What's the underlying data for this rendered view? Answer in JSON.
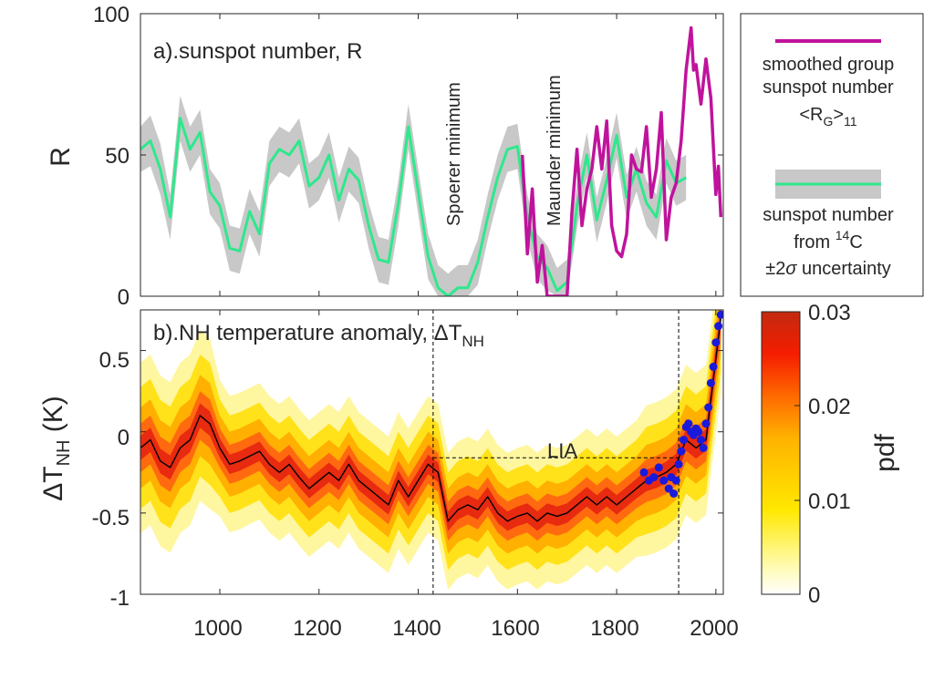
{
  "chart_data": [
    {
      "type": "line",
      "panel": "a",
      "title": "a).sunspot number, R",
      "xlabel": "",
      "ylabel": "R",
      "xlim": [
        840,
        2015
      ],
      "ylim": [
        0,
        100
      ],
      "yticks": [
        "0",
        "50",
        "100"
      ],
      "grid": false,
      "annotations": [
        "Spoerer minimum",
        "Maunder minimum"
      ],
      "series": [
        {
          "name": "sunspot number from 14C ±2σ uncertainty",
          "color": "#2ee88c",
          "band_color": "#c8c8c8",
          "x": [
            840,
            860,
            880,
            900,
            920,
            940,
            960,
            980,
            1000,
            1020,
            1040,
            1060,
            1080,
            1100,
            1120,
            1140,
            1160,
            1180,
            1200,
            1220,
            1240,
            1260,
            1280,
            1300,
            1320,
            1340,
            1360,
            1380,
            1400,
            1420,
            1440,
            1460,
            1480,
            1500,
            1520,
            1540,
            1560,
            1580,
            1600,
            1620,
            1640,
            1660,
            1680,
            1700,
            1720,
            1740,
            1760,
            1780,
            1800,
            1820,
            1840,
            1860,
            1880,
            1900,
            1920,
            1940
          ],
          "y": [
            52,
            55,
            45,
            28,
            63,
            52,
            58,
            37,
            32,
            17,
            16,
            30,
            22,
            47,
            52,
            50,
            55,
            39,
            42,
            50,
            34,
            45,
            41,
            25,
            13,
            12,
            33,
            60,
            37,
            14,
            3,
            0,
            3,
            3,
            12,
            28,
            42,
            52,
            53,
            28,
            14,
            10,
            2,
            5,
            32,
            50,
            27,
            41,
            57,
            35,
            45,
            33,
            28,
            48,
            40,
            42
          ],
          "lower": [
            44,
            46,
            36,
            20,
            55,
            44,
            50,
            29,
            24,
            9,
            8,
            22,
            14,
            39,
            44,
            42,
            47,
            31,
            34,
            42,
            26,
            37,
            33,
            17,
            5,
            4,
            25,
            52,
            29,
            6,
            0,
            0,
            0,
            0,
            4,
            20,
            34,
            44,
            45,
            20,
            6,
            2,
            0,
            0,
            24,
            42,
            19,
            33,
            49,
            27,
            37,
            25,
            20,
            40,
            32,
            34
          ],
          "upper": [
            60,
            64,
            54,
            36,
            71,
            60,
            66,
            45,
            40,
            25,
            24,
            38,
            30,
            55,
            60,
            58,
            63,
            47,
            50,
            58,
            42,
            53,
            49,
            33,
            21,
            20,
            41,
            68,
            45,
            22,
            11,
            8,
            11,
            11,
            20,
            36,
            50,
            60,
            61,
            36,
            22,
            18,
            10,
            13,
            40,
            58,
            35,
            49,
            65,
            43,
            53,
            41,
            36,
            56,
            48,
            50
          ]
        },
        {
          "name": "smoothed group sunspot number <R_G>_11",
          "color": "#c0139c",
          "x": [
            1610,
            1620,
            1630,
            1640,
            1650,
            1660,
            1670,
            1680,
            1690,
            1700,
            1710,
            1720,
            1730,
            1740,
            1750,
            1760,
            1770,
            1780,
            1790,
            1800,
            1810,
            1820,
            1830,
            1840,
            1850,
            1860,
            1870,
            1880,
            1890,
            1900,
            1910,
            1920,
            1930,
            1940,
            1950,
            1955,
            1960,
            1970,
            1980,
            1990,
            2000,
            2005,
            2010
          ],
          "y": [
            50,
            15,
            38,
            5,
            18,
            0,
            0,
            0,
            0,
            0,
            30,
            52,
            25,
            38,
            45,
            60,
            45,
            62,
            25,
            16,
            14,
            22,
            50,
            45,
            44,
            60,
            35,
            45,
            65,
            20,
            35,
            40,
            55,
            80,
            95,
            80,
            82,
            68,
            84,
            70,
            36,
            46,
            28
          ]
        }
      ],
      "legend": {
        "placement": "outside-right",
        "entries": [
          "smoothed group sunspot number <R_G>_11",
          "sunspot number from 14C ±2σ uncertainty"
        ]
      }
    },
    {
      "type": "heatmap",
      "panel": "b",
      "title": "b).NH temperature anomaly, ΔT_NH",
      "xlabel": "",
      "ylabel": "ΔT_NH (K)",
      "xlim": [
        840,
        2015
      ],
      "ylim": [
        -1,
        0.75
      ],
      "xticks": [
        "1000",
        "1200",
        "1400",
        "1600",
        "1800",
        "2000"
      ],
      "yticks": [
        "-1",
        "-0.5",
        "0",
        "0.5"
      ],
      "grid": false,
      "annotations": [
        "LIA"
      ],
      "lia": {
        "start": 1430,
        "end": 1925,
        "level": -0.16
      },
      "pdf_colormap": {
        "label": "pdf",
        "range": [
          0,
          0.03
        ],
        "ticks": [
          "0",
          "0.01",
          "0.02",
          "0.03"
        ]
      },
      "series": [
        {
          "name": "reconstruction",
          "color": "#000000",
          "x": [
            840,
            860,
            880,
            900,
            920,
            940,
            960,
            980,
            1000,
            1020,
            1040,
            1060,
            1080,
            1100,
            1120,
            1140,
            1160,
            1180,
            1200,
            1220,
            1240,
            1260,
            1280,
            1300,
            1320,
            1340,
            1360,
            1380,
            1400,
            1420,
            1440,
            1460,
            1480,
            1500,
            1520,
            1540,
            1560,
            1580,
            1600,
            1620,
            1640,
            1660,
            1680,
            1700,
            1720,
            1740,
            1760,
            1780,
            1800,
            1820,
            1840,
            1860,
            1880,
            1900,
            1920,
            1940,
            1960,
            1980,
            2000,
            2010
          ],
          "y": [
            -0.1,
            -0.05,
            -0.18,
            -0.22,
            -0.1,
            -0.05,
            0.1,
            0.05,
            -0.1,
            -0.2,
            -0.18,
            -0.15,
            -0.12,
            -0.2,
            -0.25,
            -0.2,
            -0.28,
            -0.35,
            -0.3,
            -0.25,
            -0.3,
            -0.2,
            -0.3,
            -0.35,
            -0.4,
            -0.45,
            -0.3,
            -0.4,
            -0.3,
            -0.2,
            -0.25,
            -0.55,
            -0.48,
            -0.45,
            -0.48,
            -0.4,
            -0.5,
            -0.55,
            -0.52,
            -0.5,
            -0.55,
            -0.5,
            -0.52,
            -0.5,
            -0.45,
            -0.4,
            -0.45,
            -0.4,
            -0.45,
            -0.4,
            -0.35,
            -0.3,
            -0.28,
            -0.25,
            -0.2,
            -0.05,
            -0.1,
            -0.05,
            0.45,
            0.7
          ]
        },
        {
          "name": "instrumental",
          "color": "#1a1adc",
          "x": [
            1855,
            1865,
            1875,
            1885,
            1895,
            1905,
            1910,
            1915,
            1920,
            1925,
            1930,
            1935,
            1940,
            1945,
            1950,
            1955,
            1960,
            1965,
            1970,
            1975,
            1980,
            1985,
            1990,
            1995,
            2000,
            2005,
            2010
          ],
          "y": [
            -0.25,
            -0.3,
            -0.28,
            -0.22,
            -0.3,
            -0.35,
            -0.28,
            -0.38,
            -0.3,
            -0.2,
            -0.12,
            -0.05,
            0.03,
            0.05,
            0.0,
            -0.02,
            0.02,
            0.0,
            -0.05,
            -0.1,
            0.05,
            0.15,
            0.3,
            0.4,
            0.55,
            0.65,
            0.72
          ]
        }
      ]
    }
  ]
}
